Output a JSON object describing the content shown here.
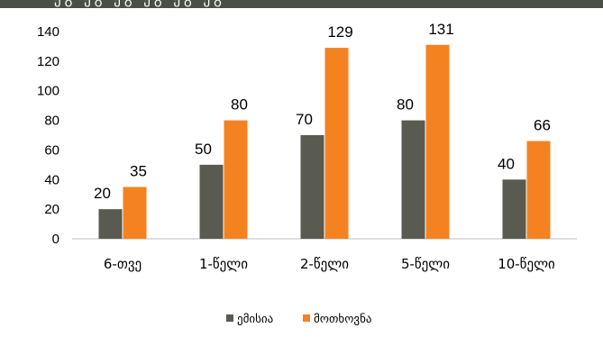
{
  "header": {
    "title_fragment": "ეგ ეგ ეგ ეგ ეგ ეგ"
  },
  "chart_data": {
    "type": "bar",
    "categories": [
      "6-თვე",
      "1-წელი",
      "2-წელი",
      "5-წელი",
      "10-წელი"
    ],
    "series": [
      {
        "name": "ემისია",
        "color": "#595a50",
        "values": [
          20,
          50,
          70,
          80,
          40
        ]
      },
      {
        "name": "მოთხოვნა",
        "color": "#f58220",
        "values": [
          35,
          80,
          129,
          131,
          66
        ]
      }
    ],
    "ylim": [
      0,
      140
    ],
    "yticks": [
      0,
      20,
      40,
      60,
      80,
      100,
      120,
      140
    ],
    "grid": false,
    "legend_position": "bottom-center",
    "data_labels": true
  }
}
